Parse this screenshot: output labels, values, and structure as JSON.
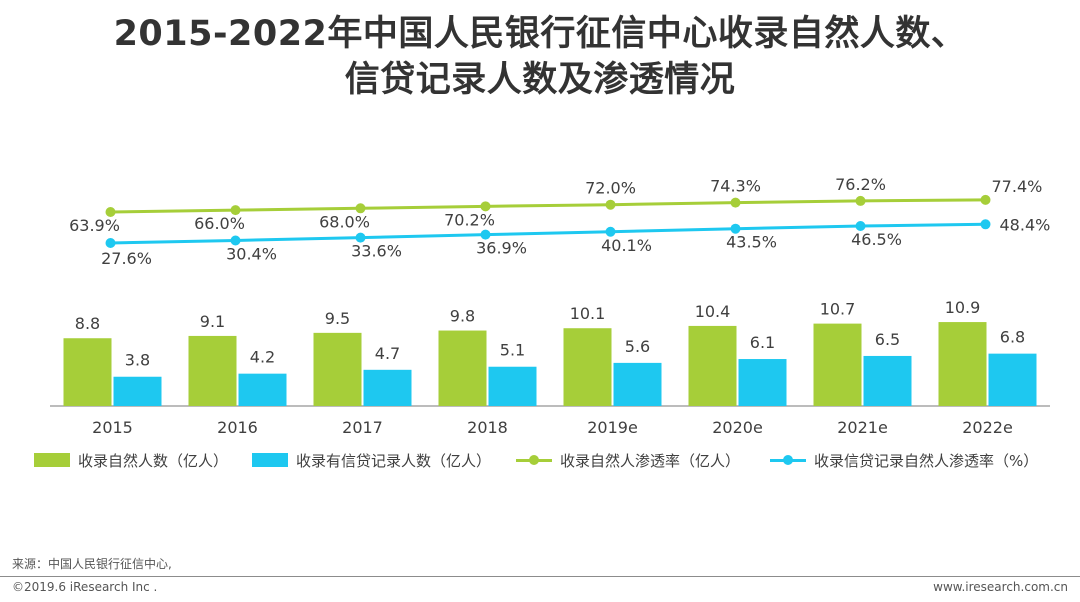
{
  "title_line1": "2015-2022年中国人民银行征信中心收录自然人数、",
  "title_line2": "信贷记录人数及渗透情况",
  "colors": {
    "green": "#A6CE39",
    "blue": "#1EC8F0",
    "axis": "#A6A6A6",
    "text": "#404040"
  },
  "chart_data": {
    "type": "bar",
    "categories": [
      "2015",
      "2016",
      "2017",
      "2018",
      "2019e",
      "2020e",
      "2021e",
      "2022e"
    ],
    "series": [
      {
        "name": "收录自然人数（亿人）",
        "type": "bar",
        "values": [
          8.8,
          9.1,
          9.5,
          9.8,
          10.1,
          10.4,
          10.7,
          10.9
        ],
        "labels": [
          "8.8",
          "9.1",
          "9.5",
          "9.8",
          "10.1",
          "10.4",
          "10.7",
          "10.9"
        ]
      },
      {
        "name": "收录有信贷记录人数（亿人）",
        "type": "bar",
        "values": [
          3.8,
          4.2,
          4.7,
          5.1,
          5.6,
          6.1,
          6.5,
          6.8
        ],
        "labels": [
          "3.8",
          "4.2",
          "4.7",
          "5.1",
          "5.6",
          "6.1",
          "6.5",
          "6.8"
        ]
      },
      {
        "name": "收录自然人渗透率（亿人）",
        "type": "line",
        "values": [
          63.9,
          66.0,
          68.0,
          70.2,
          72.0,
          74.3,
          76.2,
          77.4
        ],
        "labels": [
          "63.9%",
          "66.0%",
          "68.0%",
          "70.2%",
          "72.0%",
          "74.3%",
          "76.2%",
          "77.4%"
        ]
      },
      {
        "name": "收录信贷记录自然人渗透率（%）",
        "type": "line",
        "values": [
          27.6,
          30.4,
          33.6,
          36.9,
          40.1,
          43.5,
          46.5,
          48.4
        ],
        "labels": [
          "27.6%",
          "30.4%",
          "33.6%",
          "36.9%",
          "40.1%",
          "43.5%",
          "46.5%",
          "48.4%"
        ]
      }
    ],
    "legend_position": "bottom",
    "grid": false
  },
  "source": "来源：中国人民银行征信中心,",
  "copyright": "©2019.6 iResearch Inc .",
  "website": "www.iresearch.com.cn"
}
